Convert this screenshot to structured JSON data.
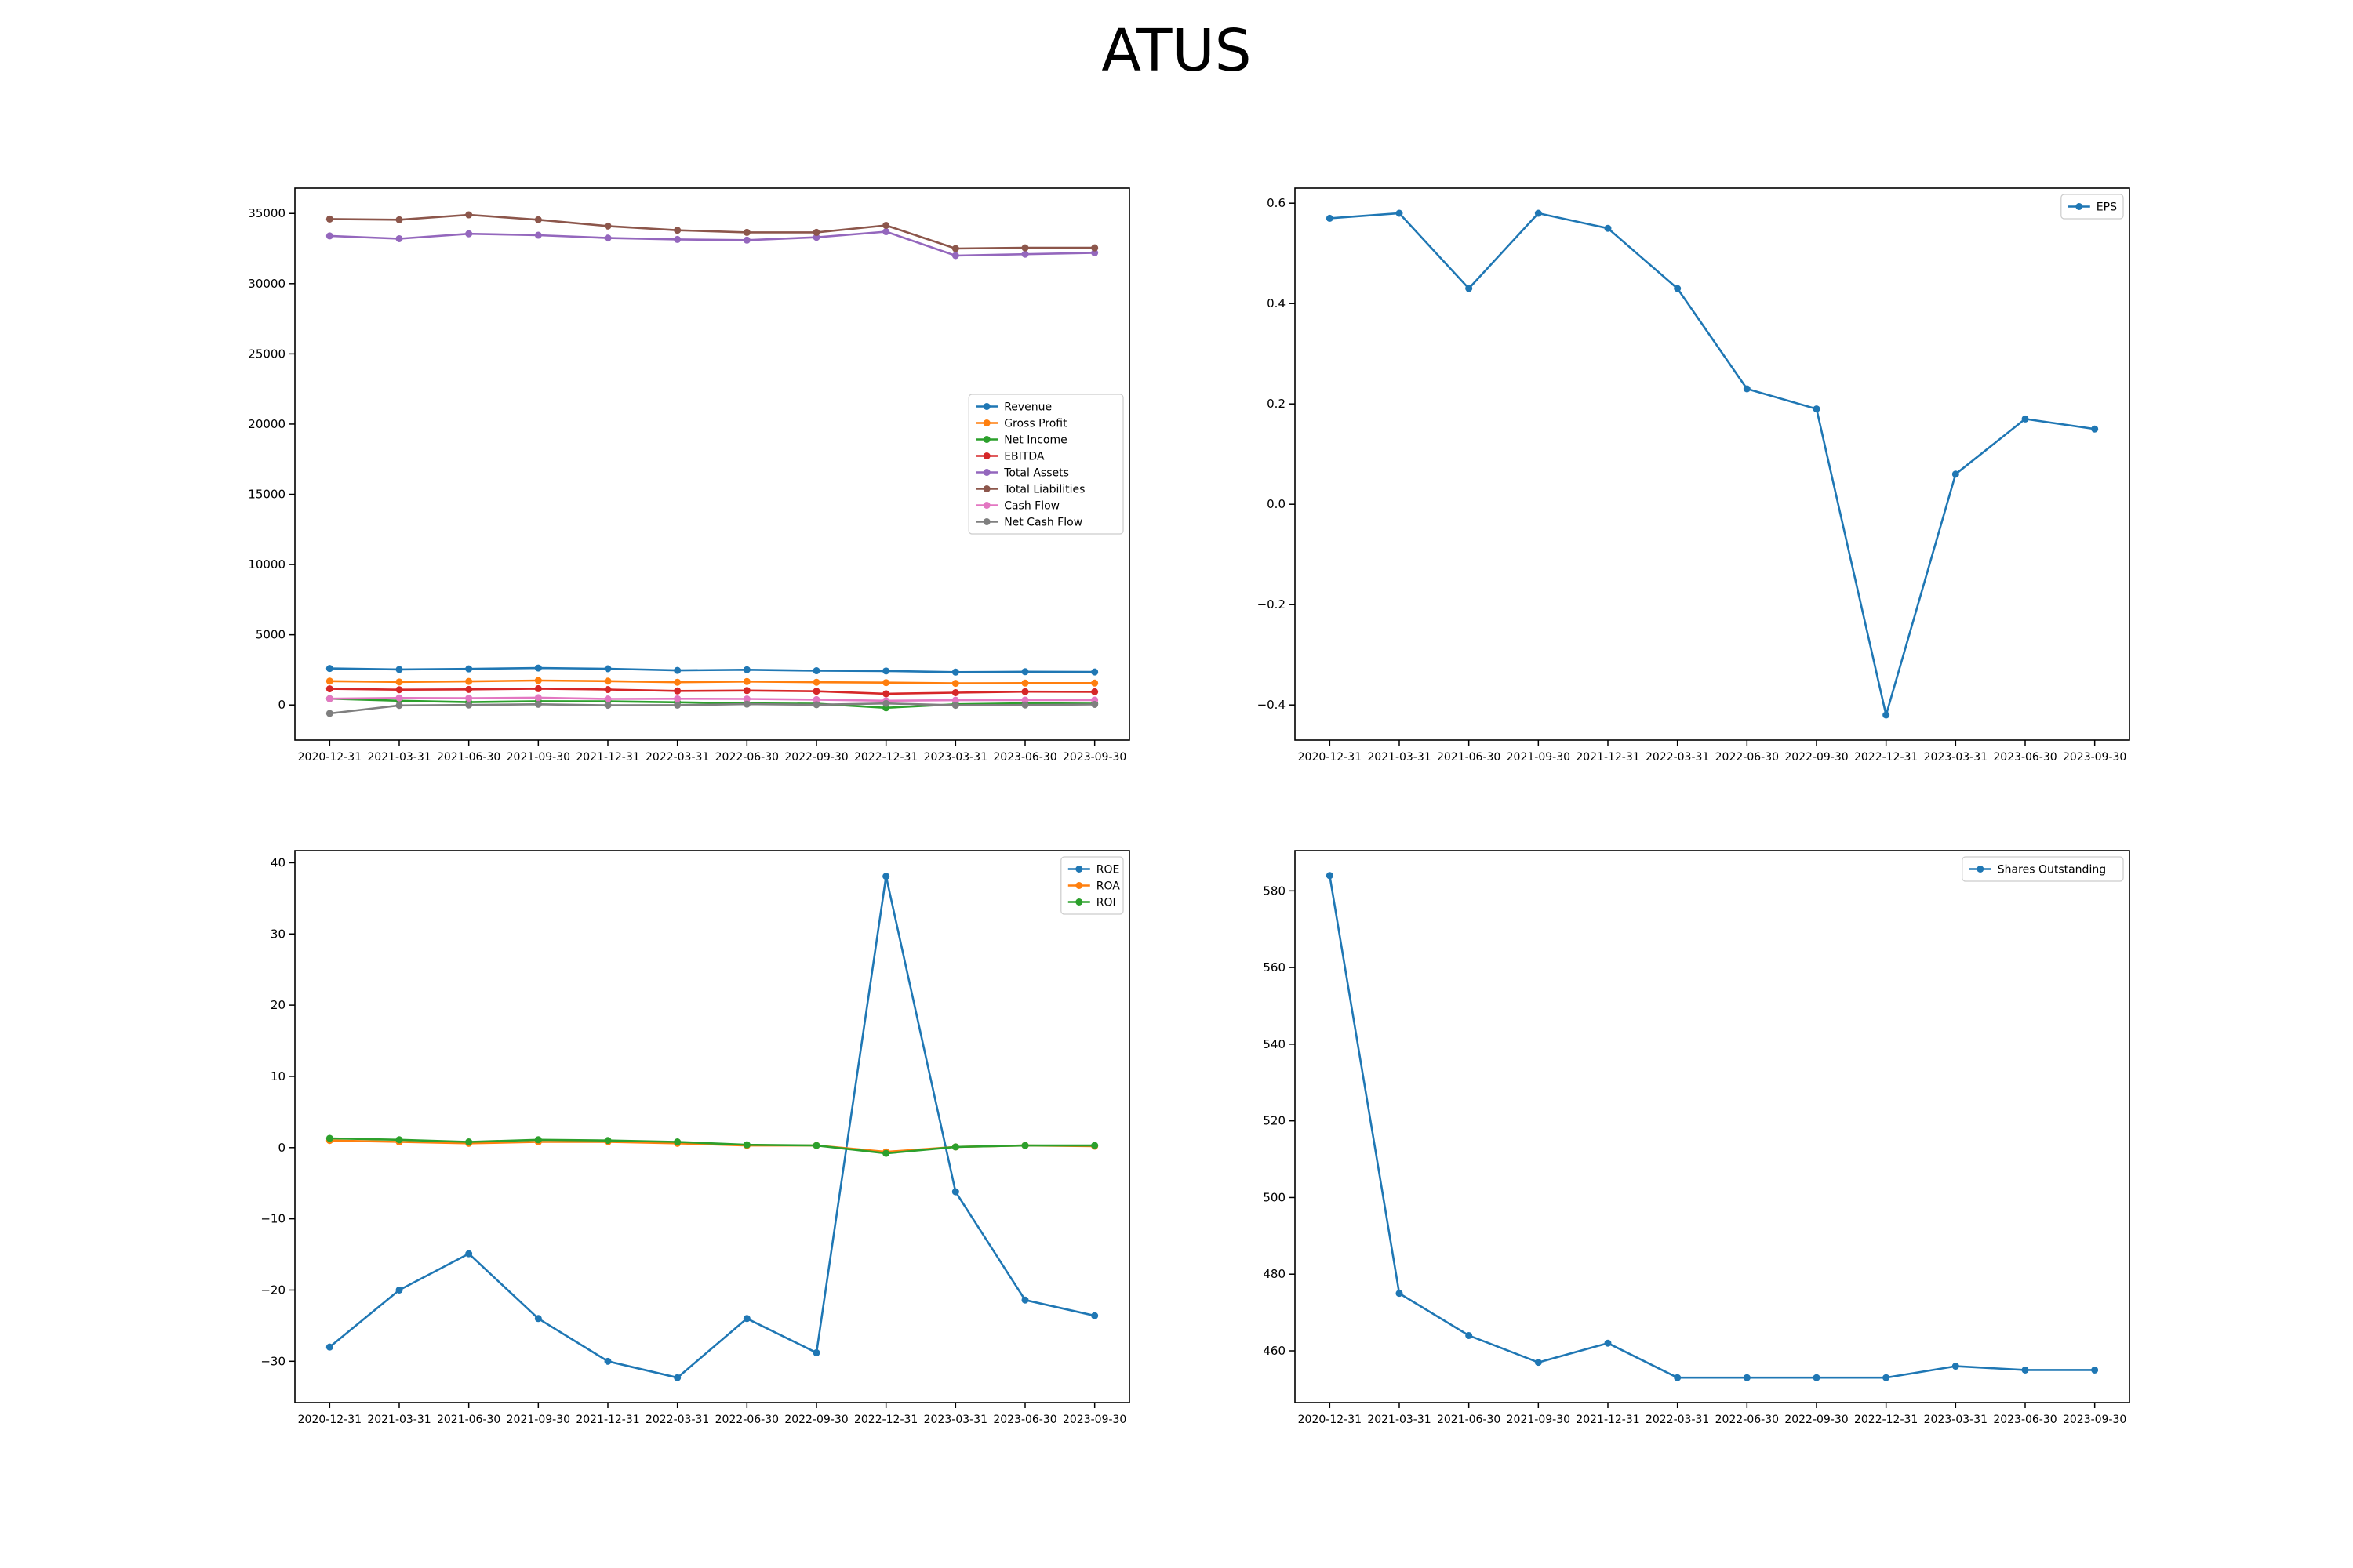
{
  "title": "ATUS",
  "colors": [
    "#1f77b4",
    "#ff7f0e",
    "#2ca02c",
    "#d62728",
    "#9467bd",
    "#8c564b",
    "#e377c2",
    "#7f7f7f"
  ],
  "chart_data": [
    {
      "type": "line",
      "categories": [
        "2020-12-31",
        "2021-03-31",
        "2021-06-30",
        "2021-09-30",
        "2021-12-31",
        "2022-03-31",
        "2022-06-30",
        "2022-09-30",
        "2022-12-31",
        "2023-03-31",
        "2023-06-30",
        "2023-09-30"
      ],
      "ylim": [
        -2500,
        36800
      ],
      "yticks": [
        0,
        5000,
        10000,
        15000,
        20000,
        25000,
        30000,
        35000
      ],
      "legend": "center-right",
      "grid": false,
      "series": [
        {
          "name": "Revenue",
          "color": "#1f77b4",
          "values": [
            2600,
            2530,
            2570,
            2630,
            2580,
            2460,
            2510,
            2440,
            2420,
            2340,
            2370,
            2350
          ]
        },
        {
          "name": "Gross Profit",
          "color": "#ff7f0e",
          "values": [
            1700,
            1640,
            1680,
            1740,
            1700,
            1620,
            1670,
            1620,
            1590,
            1540,
            1560,
            1560
          ]
        },
        {
          "name": "Net Income",
          "color": "#2ca02c",
          "values": [
            450,
            300,
            200,
            270,
            260,
            190,
            110,
            90,
            -200,
            50,
            120,
            90
          ]
        },
        {
          "name": "EBITDA",
          "color": "#d62728",
          "values": [
            1150,
            1090,
            1110,
            1160,
            1100,
            1000,
            1030,
            980,
            800,
            880,
            950,
            940
          ]
        },
        {
          "name": "Total Assets",
          "color": "#9467bd",
          "values": [
            33400,
            33200,
            33550,
            33450,
            33250,
            33150,
            33100,
            33300,
            33700,
            32000,
            32100,
            32200
          ]
        },
        {
          "name": "Total Liabilities",
          "color": "#8c564b",
          "values": [
            34600,
            34550,
            34900,
            34550,
            34100,
            33800,
            33650,
            33650,
            34150,
            32500,
            32550,
            32550
          ]
        },
        {
          "name": "Cash Flow",
          "color": "#e377c2",
          "values": [
            450,
            500,
            480,
            520,
            430,
            440,
            430,
            380,
            300,
            340,
            350,
            350
          ]
        },
        {
          "name": "Net Cash Flow",
          "color": "#7f7f7f",
          "values": [
            -600,
            -30,
            0,
            50,
            -20,
            -10,
            60,
            20,
            110,
            -20,
            0,
            40
          ]
        }
      ]
    },
    {
      "type": "line",
      "categories": [
        "2020-12-31",
        "2021-03-31",
        "2021-06-30",
        "2021-09-30",
        "2021-12-31",
        "2022-03-31",
        "2022-06-30",
        "2022-09-30",
        "2022-12-31",
        "2023-03-31",
        "2023-06-30",
        "2023-09-30"
      ],
      "ylim": [
        -0.47,
        0.63
      ],
      "yticks": [
        -0.4,
        -0.2,
        0.0,
        0.2,
        0.4,
        0.6
      ],
      "legend": "top-right",
      "grid": false,
      "series": [
        {
          "name": "EPS",
          "color": "#1f77b4",
          "values": [
            0.57,
            0.58,
            0.43,
            0.58,
            0.55,
            0.43,
            0.23,
            0.19,
            -0.42,
            0.06,
            0.17,
            0.15
          ]
        }
      ]
    },
    {
      "type": "line",
      "categories": [
        "2020-12-31",
        "2021-03-31",
        "2021-06-30",
        "2021-09-30",
        "2021-12-31",
        "2022-03-31",
        "2022-06-30",
        "2022-09-30",
        "2022-12-31",
        "2023-03-31",
        "2023-06-30",
        "2023-09-30"
      ],
      "ylim": [
        -35.8,
        41.7
      ],
      "yticks": [
        -30,
        -20,
        -10,
        0,
        10,
        20,
        30,
        40
      ],
      "legend": "top-right",
      "grid": false,
      "series": [
        {
          "name": "ROE",
          "color": "#1f77b4",
          "values": [
            -28.0,
            -20.0,
            -14.9,
            -24.0,
            -30.0,
            -32.3,
            -24.0,
            -28.8,
            38.1,
            -6.2,
            -21.4,
            -23.6
          ]
        },
        {
          "name": "ROA",
          "color": "#ff7f0e",
          "values": [
            1.0,
            0.8,
            0.6,
            0.8,
            0.8,
            0.6,
            0.3,
            0.3,
            -0.6,
            0.1,
            0.3,
            0.2
          ]
        },
        {
          "name": "ROI",
          "color": "#2ca02c",
          "values": [
            1.3,
            1.1,
            0.8,
            1.1,
            1.0,
            0.8,
            0.4,
            0.3,
            -0.8,
            0.1,
            0.3,
            0.3
          ]
        }
      ]
    },
    {
      "type": "line",
      "categories": [
        "2020-12-31",
        "2021-03-31",
        "2021-06-30",
        "2021-09-30",
        "2021-12-31",
        "2022-03-31",
        "2022-06-30",
        "2022-09-30",
        "2022-12-31",
        "2023-03-31",
        "2023-06-30",
        "2023-09-30"
      ],
      "ylim": [
        446.5,
        590.5
      ],
      "yticks": [
        460,
        480,
        500,
        520,
        540,
        560,
        580
      ],
      "legend": "top-right",
      "grid": false,
      "series": [
        {
          "name": "Shares Outstanding",
          "color": "#1f77b4",
          "values": [
            584,
            475,
            464,
            457,
            462,
            453,
            453,
            453,
            453,
            456,
            455,
            455
          ]
        }
      ]
    }
  ]
}
